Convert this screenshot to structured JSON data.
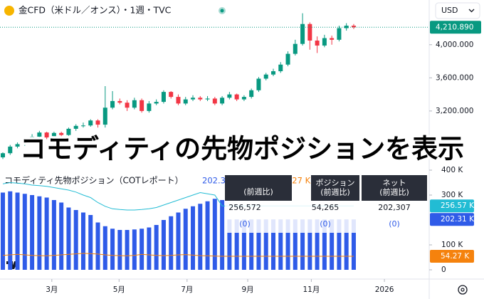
{
  "header": {
    "title": "金CFD（米ドル／オンス）・1週・TVC",
    "currency": "USD"
  },
  "overlay_caption": "コモディティの先物ポジションを表示",
  "chart_data": [
    {
      "type": "candlestick",
      "up_color": "#089981",
      "down_color": "#f23645",
      "open": [
        2640,
        2690,
        2770,
        2800,
        2860,
        2890,
        2940,
        2880,
        2935,
        2910,
        2985,
        3020,
        3025,
        3085,
        3035,
        3240,
        3320,
        3300,
        3240,
        3330,
        3200,
        3290,
        3310,
        3430,
        3370,
        3290,
        3340,
        3360,
        3340,
        3350,
        3290,
        3360,
        3400,
        3340,
        3370,
        3450,
        3590,
        3640,
        3680,
        3760,
        3890,
        4010,
        4250,
        4050,
        3990,
        4080,
        4060,
        4200,
        4230
      ],
      "high": [
        2700,
        2790,
        2820,
        2880,
        2920,
        2960,
        2950,
        2950,
        2950,
        3000,
        3040,
        3060,
        3100,
        3100,
        3500,
        3440,
        3350,
        3330,
        3360,
        3350,
        3320,
        3340,
        3450,
        3440,
        3400,
        3370,
        3390,
        3380,
        3380,
        3370,
        3380,
        3430,
        3410,
        3390,
        3470,
        3610,
        3660,
        3710,
        3790,
        3920,
        4060,
        4380,
        4270,
        4100,
        4120,
        4110,
        4230,
        4260,
        4250
      ],
      "low": [
        2620,
        2670,
        2750,
        2780,
        2840,
        2870,
        2860,
        2860,
        2890,
        2900,
        2960,
        3000,
        3010,
        3000,
        3000,
        3220,
        3280,
        3200,
        3220,
        3180,
        3180,
        3270,
        3290,
        3350,
        3270,
        3270,
        3320,
        3320,
        3320,
        3270,
        3270,
        3340,
        3320,
        3320,
        3350,
        3430,
        3570,
        3620,
        3660,
        3740,
        3870,
        3990,
        3940,
        3900,
        3970,
        4000,
        4040,
        4170,
        4190
      ],
      "close": [
        2690,
        2770,
        2800,
        2860,
        2890,
        2940,
        2880,
        2935,
        2910,
        2985,
        3020,
        3025,
        3085,
        3035,
        3240,
        3320,
        3300,
        3240,
        3330,
        3200,
        3290,
        3310,
        3430,
        3370,
        3290,
        3340,
        3360,
        3340,
        3350,
        3290,
        3360,
        3400,
        3340,
        3370,
        3450,
        3590,
        3640,
        3680,
        3760,
        3890,
        4010,
        4250,
        4050,
        3990,
        4080,
        4060,
        4200,
        4230,
        4210.89
      ],
      "last_price": {
        "value": 4210.89,
        "label": "4,210.890"
      },
      "ylim": [
        2520,
        4540
      ],
      "yticks": [
        {
          "value": 4000,
          "label": "4,000.000"
        },
        {
          "value": 3600,
          "label": "3,600.000"
        },
        {
          "value": 3200,
          "label": "3,200.000"
        }
      ]
    },
    {
      "type": "bar_line",
      "title": "コモディティ先物ポジション（COTレポート）",
      "series": [
        {
          "kind": "bar",
          "color": "#2f5be8",
          "current_label": "202.31 K",
          "values": [
            310,
            315,
            310,
            305,
            300,
            295,
            290,
            280,
            270,
            250,
            240,
            230,
            220,
            190,
            175,
            165,
            160,
            160,
            162,
            165,
            170,
            180,
            200,
            215,
            230,
            245,
            255,
            265,
            275,
            285,
            280,
            202.31,
            202.31,
            202.31,
            202.31,
            202.31,
            202.31,
            202.31,
            202.31,
            202.31,
            202.31,
            202.31,
            202.31,
            202.31,
            202.31,
            202.31,
            202.31,
            202.31,
            202.31
          ]
        },
        {
          "kind": "line",
          "color": "#22bcd4",
          "current_label": "256.57 K",
          "values": [
            345,
            350,
            348,
            345,
            340,
            338,
            335,
            330,
            325,
            320,
            312,
            300,
            290,
            270,
            255,
            245,
            242,
            240,
            240,
            242,
            245,
            250,
            260,
            270,
            280,
            290,
            300,
            310,
            305,
            300,
            256.57,
            256.57,
            256.57,
            256.57,
            256.57,
            256.57,
            256.57,
            256.57,
            256.57,
            256.57,
            256.57,
            256.57,
            256.57,
            256.57,
            256.57,
            256.57,
            256.57,
            256.57,
            256.57
          ]
        },
        {
          "kind": "line",
          "color": "#f5820d",
          "current_label": "54.27 K",
          "values": [
            58,
            60,
            62,
            60,
            58,
            57,
            56,
            58,
            60,
            62,
            64,
            66,
            65,
            63,
            60,
            58,
            57,
            56,
            58,
            62,
            60,
            58,
            57,
            58,
            60,
            61,
            59,
            57,
            56,
            55,
            54.27,
            54.27,
            54.27,
            54.27,
            54.27,
            54.27,
            54.27,
            54.27,
            54.27,
            54.27,
            54.27,
            54.27,
            54.27,
            54.27,
            54.27,
            54.27,
            54.27,
            54.27,
            54.27
          ]
        }
      ],
      "ylim": [
        0,
        400
      ],
      "yticks": [
        {
          "value": 400,
          "label": "400 K"
        },
        {
          "value": 300,
          "label": "300 K"
        },
        {
          "value": 100,
          "label": "100 K"
        },
        0
      ],
      "xticks": [
        {
          "value": 6.7,
          "label": "3月"
        },
        {
          "value": 15.9,
          "label": "5月"
        },
        {
          "value": 25.2,
          "label": "7月"
        },
        {
          "value": 33.5,
          "label": "9月"
        },
        {
          "value": 42.2,
          "label": "11月"
        },
        {
          "value": 52.2,
          "label": "2026"
        }
      ]
    }
  ],
  "table": {
    "headers": [
      [
        "(前週比)"
      ],
      [
        "ポジション",
        "(前週比)"
      ],
      [
        "ネット",
        "(前週比)"
      ]
    ],
    "values": [
      "256,572",
      "54,265",
      "202,307"
    ],
    "changes": [
      "(0)",
      "(0)",
      "(0)"
    ]
  }
}
